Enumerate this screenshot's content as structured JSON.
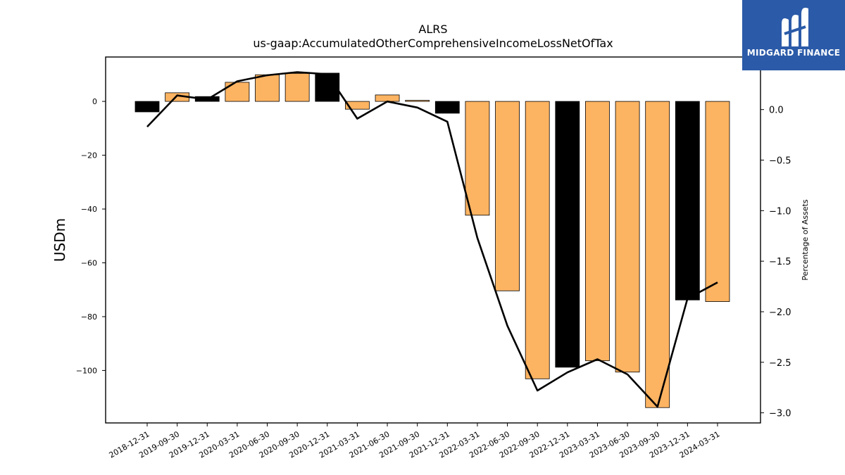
{
  "chart_data": {
    "type": "bar",
    "title": "ALRS",
    "subtitle": "us-gaap:AccumulatedOtherComprehensiveIncomeLossNetOfTax",
    "ylabel": "USDm",
    "y2label": "Percentage of Assets",
    "categories": [
      "2018-12-31",
      "2019-09-30",
      "2019-12-31",
      "2020-03-31",
      "2020-06-30",
      "2020-09-30",
      "2020-12-31",
      "2021-03-31",
      "2021-06-30",
      "2021-09-30",
      "2021-12-31",
      "2022-03-31",
      "2022-06-30",
      "2022-09-30",
      "2022-12-31",
      "2023-03-31",
      "2023-06-30",
      "2023-09-30",
      "2023-12-31",
      "2024-03-31"
    ],
    "values": [
      -3.9,
      3.2,
      1.8,
      7.1,
      9.9,
      10.4,
      10.5,
      -2.9,
      2.4,
      0.4,
      -4.4,
      -42.3,
      -70.4,
      -103.1,
      -98.8,
      -96.4,
      -100.6,
      -113.8,
      -73.8,
      -74.4
    ],
    "bar_colors": [
      "#000000",
      "#fdb462",
      "#000000",
      "#fdb462",
      "#fdb462",
      "#fdb462",
      "#000000",
      "#fdb462",
      "#fdb462",
      "#fdb462",
      "#000000",
      "#fdb462",
      "#fdb462",
      "#fdb462",
      "#000000",
      "#fdb462",
      "#fdb462",
      "#fdb462",
      "#000000",
      "#fdb462"
    ],
    "pct_assets": [
      -0.17,
      0.14,
      0.1,
      0.28,
      0.34,
      0.37,
      0.35,
      -0.09,
      0.08,
      0.02,
      -0.12,
      -1.27,
      -2.14,
      -2.78,
      -2.6,
      -2.47,
      -2.62,
      -2.94,
      -1.87,
      -1.71
    ],
    "ylim": [
      -119.5,
      16.5
    ],
    "y2lim": [
      -3.1,
      0.52
    ],
    "yticks": [
      0,
      -20,
      -40,
      -60,
      -80,
      -100
    ],
    "y2ticks": [
      "0.0",
      "-0.5",
      "-1.0",
      "-1.5",
      "-2.0",
      "-2.5",
      "-3.0"
    ],
    "grid": false
  },
  "logo": {
    "text": "MIDGARD FINANCE"
  },
  "colors": {
    "bar_highlight": "#000000",
    "bar_default": "#fdb462",
    "line": "#000000",
    "logo_bg": "#2b5aa8"
  }
}
